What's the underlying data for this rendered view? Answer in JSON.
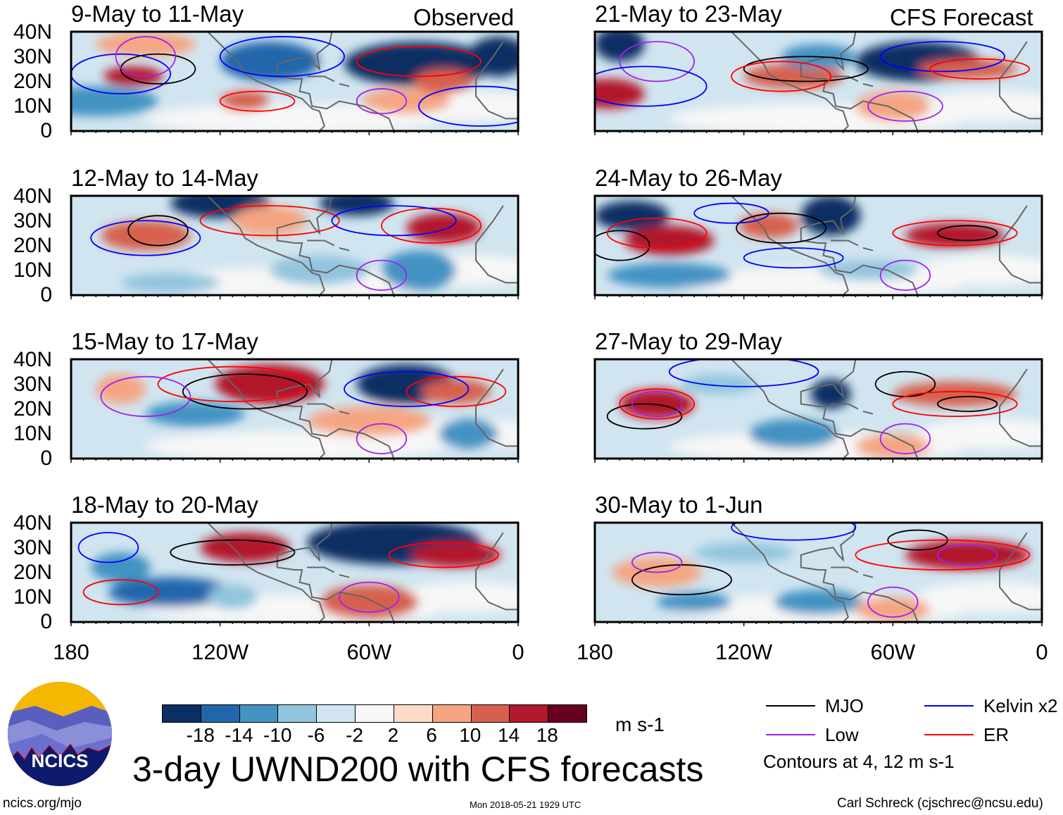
{
  "figure": {
    "title": "3-day UWND200 with CFS forecasts",
    "observed_label": "Observed",
    "forecast_label": "CFS Forecast",
    "logo_text": "NCICS",
    "url": "ncics.org/mjo",
    "timestamp": "Mon 2018-05-21 1929 UTC",
    "author": "Carl Schreck (cjschrec@ncsu.edu)"
  },
  "chart_data": {
    "type": "heatmap",
    "variable": "200-hPa zonal wind anomaly",
    "units": "m s-1",
    "lat_labels": [
      "40N",
      "30N",
      "20N",
      "10N",
      "0"
    ],
    "lon_labels": [
      "180",
      "120W",
      "60W",
      "0"
    ],
    "lat_range": [
      0,
      40
    ],
    "lon_range": [
      -180,
      0
    ],
    "panels": [
      {
        "title": "9-May to 11-May",
        "type": "Observed"
      },
      {
        "title": "12-May to 14-May",
        "type": "Observed"
      },
      {
        "title": "15-May to 17-May",
        "type": "Observed"
      },
      {
        "title": "18-May to 20-May",
        "type": "Observed"
      },
      {
        "title": "21-May to 23-May",
        "type": "CFS Forecast"
      },
      {
        "title": "24-May to 26-May",
        "type": "CFS Forecast"
      },
      {
        "title": "27-May to 29-May",
        "type": "CFS Forecast"
      },
      {
        "title": "30-May to 1-Jun",
        "type": "CFS Forecast"
      }
    ],
    "colorbar": {
      "labels": [
        "-18",
        "-14",
        "-10",
        "-6",
        "-2",
        "2",
        "6",
        "10",
        "14",
        "18"
      ],
      "colors": [
        "#0c2f63",
        "#2166ac",
        "#4393c3",
        "#92c5de",
        "#d1e5f0",
        "#f7f7f7",
        "#fddbc7",
        "#f4a582",
        "#d6604d",
        "#b2182b",
        "#67001f"
      ],
      "units": "m s-1"
    },
    "legend": [
      {
        "label": "MJO",
        "color": "#000000"
      },
      {
        "label": "Kelvin x2",
        "color": "#0000ff"
      },
      {
        "label": "Low",
        "color": "#a020f0"
      },
      {
        "label": "ER",
        "color": "#ff0000"
      }
    ],
    "contour_note": "Contours at 4, 12 m s-1"
  }
}
